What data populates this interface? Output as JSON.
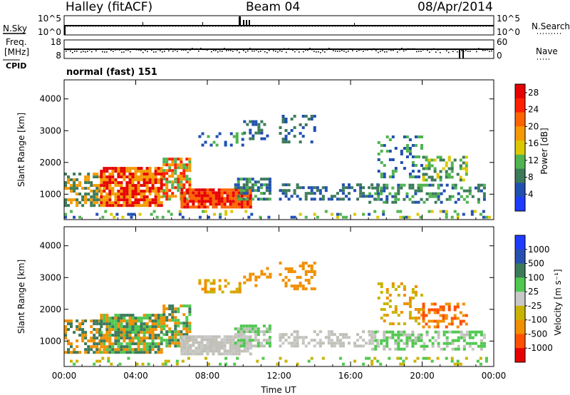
{
  "header": {
    "station": "Halley (fitACF)",
    "beam": "Beam 04",
    "date": "08/Apr/2014"
  },
  "panels": {
    "nsky_label": "N.Sky",
    "nsearch_label": "N.Search",
    "nsky_ticks": [
      "10^5",
      "10^0"
    ],
    "freq_label_1": "Freq.",
    "freq_label_2": "[MHz]",
    "freq_ticks": [
      "18",
      "8"
    ],
    "nave_label": "Nave",
    "nave_ticks": [
      "60",
      "0"
    ],
    "cpid_label": "CPID",
    "cpid_text": "normal (fast) 151"
  },
  "colors": {
    "power_scale": [
      "#1e3cff",
      "#2050b0",
      "#3c7a5a",
      "#50b450",
      "#dcc800",
      "#f59a00",
      "#ff6400",
      "#ff2000",
      "#e60000"
    ],
    "velocity_scale": [
      "#1e3cff",
      "#2850b0",
      "#3c7a5a",
      "#50c850",
      "#c8c8c8",
      "#c8b400",
      "#f09000",
      "#ff5000",
      "#e60000"
    ],
    "ground_scatter": "#c0c0b8"
  },
  "chart_data": [
    {
      "type": "heatmap",
      "name": "power",
      "xlabel": "",
      "ylabel": "Slant Range [km]",
      "x_ticks": [
        "00:00",
        "04:00",
        "08:00",
        "12:00",
        "16:00",
        "20:00",
        "00:00"
      ],
      "y_ticks": [
        1000,
        2000,
        3000,
        4000
      ],
      "xlim_hours": [
        0,
        24
      ],
      "ylim_km": [
        200,
        4600
      ],
      "colorbar_label": "Power [dB]",
      "colorbar_ticks": [
        4,
        8,
        12,
        16,
        20,
        24,
        28
      ],
      "colorbar_range": [
        0,
        30
      ]
    },
    {
      "type": "heatmap",
      "name": "velocity",
      "xlabel": "Time UT",
      "ylabel": "Slant Range [km]",
      "x_ticks": [
        "00:00",
        "04:00",
        "08:00",
        "12:00",
        "16:00",
        "20:00",
        "00:00"
      ],
      "y_ticks": [
        1000,
        2000,
        3000,
        4000
      ],
      "xlim_hours": [
        0,
        24
      ],
      "ylim_km": [
        200,
        4600
      ],
      "colorbar_label": "Velocity [m s⁻¹]",
      "colorbar_ticks": [
        "1000",
        "500",
        "100",
        "25",
        "-25",
        "-100",
        "-500",
        "-1000"
      ]
    }
  ]
}
